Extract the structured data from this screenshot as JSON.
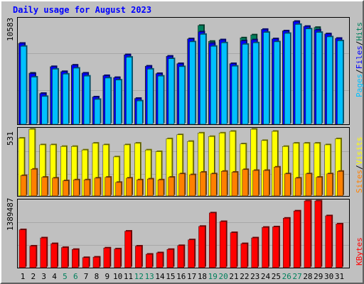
{
  "title": "Daily usage for August 2023",
  "colors": {
    "hits": "#00805c",
    "files": "#0000ff",
    "pages": "#00c0ff",
    "visits": "#ffff00",
    "sites": "#ff8000",
    "kbytes": "#ff0000",
    "weekday": "#000000",
    "weekend": "#00805c",
    "background": "#c0c0c0",
    "title": "#0000ff"
  },
  "chart_data": [
    {
      "type": "bar",
      "title": "Daily usage for August 2023",
      "ymax_label": "10583",
      "ymax": 10583,
      "categories": [
        "1",
        "2",
        "3",
        "4",
        "5",
        "6",
        "7",
        "8",
        "9",
        "10",
        "11",
        "12",
        "13",
        "14",
        "15",
        "16",
        "17",
        "18",
        "19",
        "20",
        "21",
        "22",
        "23",
        "24",
        "25",
        "26",
        "27",
        "28",
        "29",
        "30",
        "31"
      ],
      "weekend_days": [
        "5",
        "6",
        "12",
        "13",
        "19",
        "20",
        "26",
        "27"
      ],
      "legend": [
        "Pages",
        "/",
        "Files",
        "/",
        "Hits"
      ],
      "series": [
        {
          "name": "Hits",
          "values": [
            8150,
            5150,
            3100,
            5800,
            5300,
            5950,
            5150,
            2750,
            4900,
            4700,
            7000,
            2600,
            5850,
            5100,
            6850,
            6100,
            8600,
            9950,
            8350,
            8500,
            6100,
            8700,
            9000,
            9550,
            8600,
            9400,
            10350,
            9850,
            9750,
            9100,
            8650
          ]
        },
        {
          "name": "Files",
          "values": [
            8150,
            5100,
            3100,
            5800,
            5300,
            5950,
            5150,
            2750,
            4900,
            4700,
            7000,
            2600,
            5850,
            5100,
            6850,
            6100,
            8600,
            9300,
            8150,
            8500,
            6100,
            8400,
            8500,
            9550,
            8600,
            9400,
            10350,
            9850,
            9500,
            9100,
            8650
          ]
        },
        {
          "name": "Pages",
          "values": [
            7850,
            4750,
            2800,
            5550,
            5050,
            5650,
            4850,
            2500,
            4650,
            4450,
            6750,
            2350,
            5550,
            4850,
            6600,
            5800,
            8300,
            9050,
            7850,
            8200,
            5850,
            8050,
            8200,
            9250,
            8300,
            9150,
            10050,
            9600,
            9250,
            8800,
            8400
          ]
        }
      ]
    },
    {
      "type": "bar",
      "ymax_label": "531",
      "ymax": 531,
      "categories": [
        "1",
        "2",
        "3",
        "4",
        "5",
        "6",
        "7",
        "8",
        "9",
        "10",
        "11",
        "12",
        "13",
        "14",
        "15",
        "16",
        "17",
        "18",
        "19",
        "20",
        "21",
        "22",
        "23",
        "24",
        "25",
        "26",
        "27",
        "28",
        "29",
        "30",
        "31"
      ],
      "legend": [
        "Sites",
        "/",
        "Visits"
      ],
      "series": [
        {
          "name": "Visits",
          "values": [
            460,
            531,
            407,
            407,
            394,
            394,
            366,
            420,
            407,
            311,
            407,
            420,
            366,
            353,
            455,
            487,
            434,
            501,
            473,
            501,
            514,
            414,
            531,
            441,
            514,
            394,
            420,
            420,
            420,
            407,
            455
          ]
        },
        {
          "name": "Sites",
          "values": [
            162,
            213,
            149,
            142,
            121,
            128,
            128,
            142,
            149,
            108,
            142,
            128,
            135,
            128,
            149,
            176,
            169,
            189,
            176,
            196,
            189,
            210,
            203,
            203,
            230,
            176,
            142,
            176,
            149,
            176,
            196
          ]
        }
      ]
    },
    {
      "type": "bar",
      "ymax_label": "1389487",
      "ymax": 1389487,
      "categories": [
        "1",
        "2",
        "3",
        "4",
        "5",
        "6",
        "7",
        "8",
        "9",
        "10",
        "11",
        "12",
        "13",
        "14",
        "15",
        "16",
        "17",
        "18",
        "19",
        "20",
        "21",
        "22",
        "23",
        "24",
        "25",
        "26",
        "27",
        "28",
        "29",
        "30",
        "31"
      ],
      "legend": [
        "KBytes"
      ],
      "series": [
        {
          "name": "KBytes",
          "values": [
            790000,
            450000,
            620000,
            500000,
            420000,
            380000,
            210000,
            220000,
            410000,
            390000,
            760000,
            450000,
            280000,
            310000,
            380000,
            460000,
            580000,
            860000,
            1140000,
            960000,
            730000,
            500000,
            620000,
            840000,
            850000,
            1030000,
            1180000,
            1389487,
            1389487,
            1080000,
            910000
          ]
        }
      ]
    }
  ]
}
